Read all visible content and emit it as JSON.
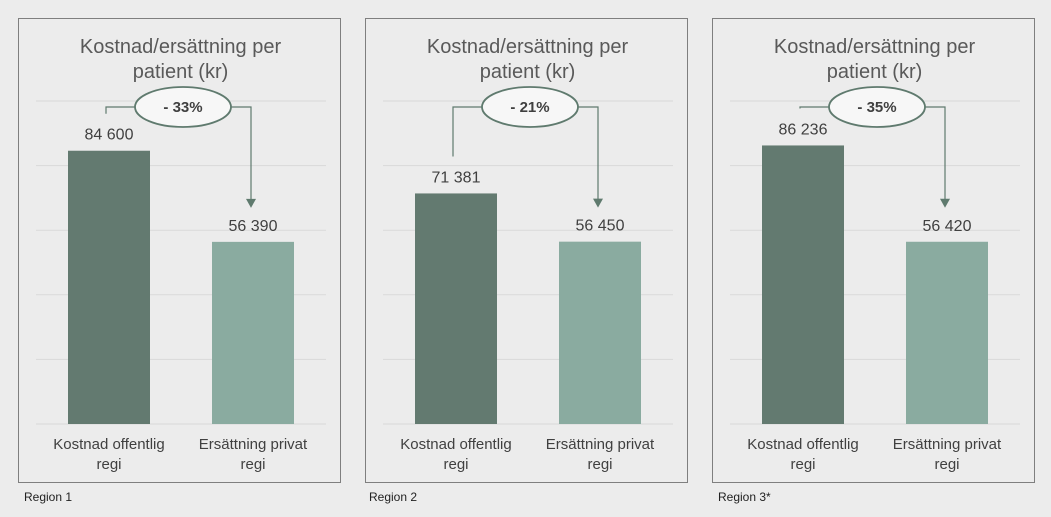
{
  "chart_data": [
    {
      "type": "bar",
      "title": "Kostnad/ersättning per patient (kr)",
      "title_lines": [
        "Kostnad/ersättning per",
        "patient (kr)"
      ],
      "region": "Region 1",
      "categories": [
        [
          "Kostnad offentlig",
          "regi"
        ],
        [
          "Ersättning privat",
          "regi"
        ]
      ],
      "values": [
        84600,
        56390
      ],
      "value_labels": [
        "84 600",
        "56 390"
      ],
      "change_label": "- 33%",
      "ylim": [
        0,
        100000
      ],
      "grid_step": 20000,
      "grid": true
    },
    {
      "type": "bar",
      "title": "Kostnad/ersättning per patient (kr)",
      "title_lines": [
        "Kostnad/ersättning per",
        "patient (kr)"
      ],
      "region": "Region 2",
      "categories": [
        [
          "Kostnad offentlig",
          "regi"
        ],
        [
          "Ersättning privat",
          "regi"
        ]
      ],
      "values": [
        71381,
        56450
      ],
      "value_labels": [
        "71 381",
        "56 450"
      ],
      "change_label": "- 21%",
      "ylim": [
        0,
        100000
      ],
      "grid_step": 20000,
      "grid": true
    },
    {
      "type": "bar",
      "title": "Kostnad/ersättning per patient (kr)",
      "title_lines": [
        "Kostnad/ersättning per",
        "patient (kr)"
      ],
      "region": "Region 3*",
      "categories": [
        [
          "Kostnad offentlig",
          "regi"
        ],
        [
          "Ersättning privat",
          "regi"
        ]
      ],
      "values": [
        86236,
        56420
      ],
      "value_labels": [
        "86 236",
        "56 420"
      ],
      "change_label": "- 35%",
      "ylim": [
        0,
        100000
      ],
      "grid_step": 20000,
      "grid": true
    }
  ],
  "colors": {
    "bar_public": "#637a70",
    "bar_private": "#8aaba0",
    "connector": "#5f7a6e",
    "grid": "#d9d9d9",
    "text": "#404040",
    "title": "#595959"
  }
}
